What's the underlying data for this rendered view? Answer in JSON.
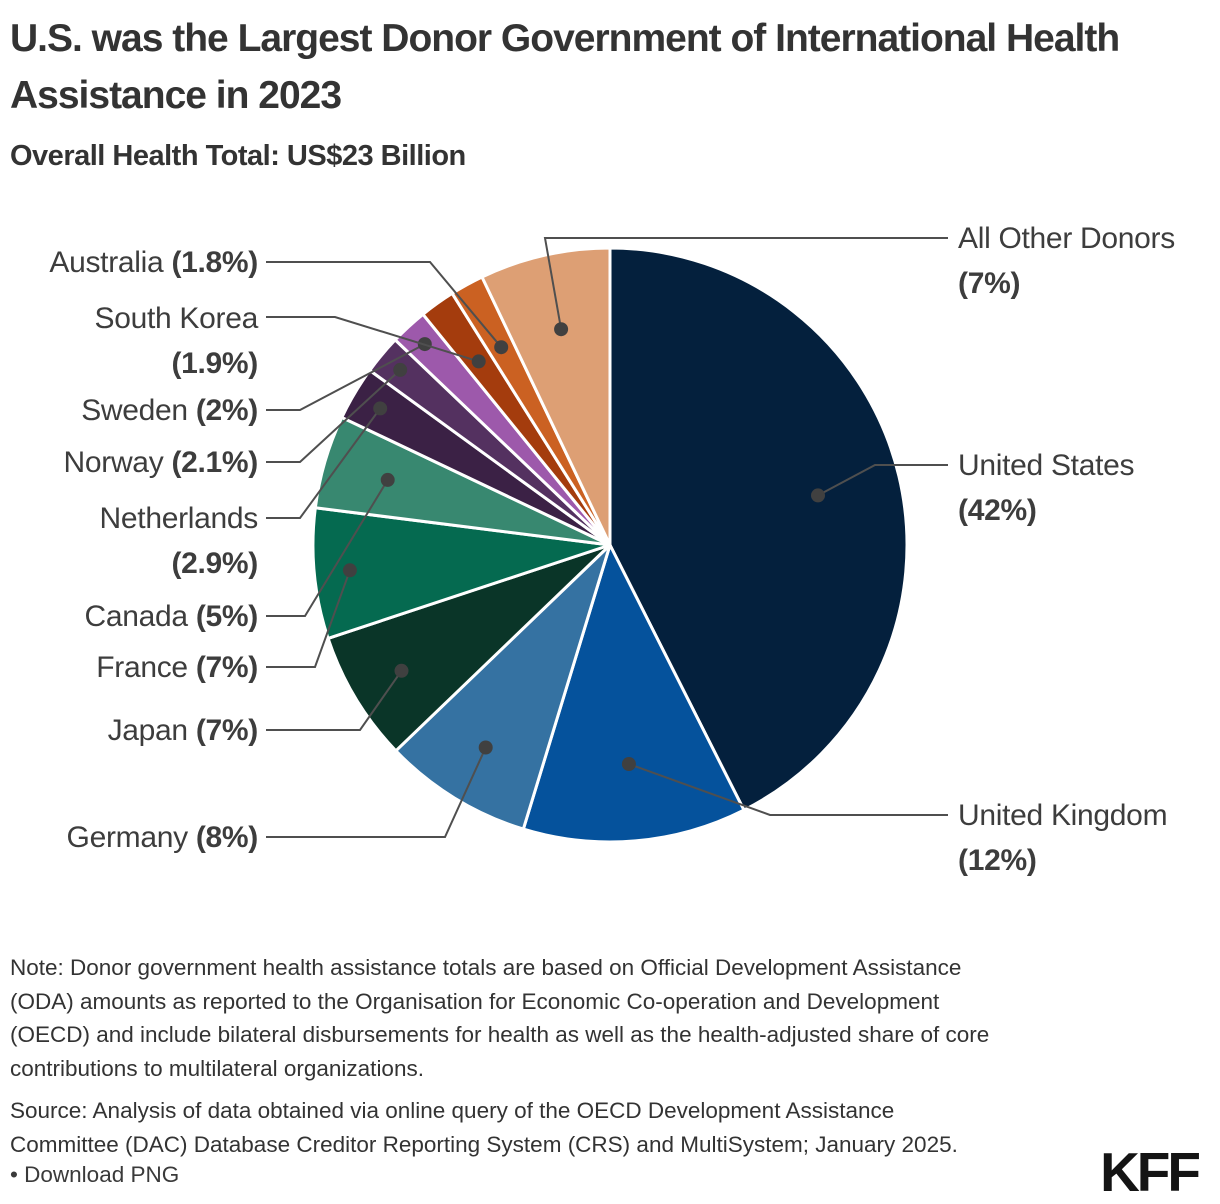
{
  "header": {
    "title": "U.S. was the Largest Donor Government of International Health Assistance in 2023",
    "subtitle": "Overall Health Total: US$23 Billion"
  },
  "chart_data": {
    "type": "pie",
    "title": "U.S. was the Largest Donor Government of International Health Assistance in 2023",
    "subtitle": "Overall Health Total: US$23 Billion",
    "total": "US$23 Billion",
    "unit": "percent of overall health total",
    "direction": "clockwise",
    "start_angle_deg": 0,
    "slices": [
      {
        "label": "United States",
        "pct_label": "(42%)",
        "value": 42,
        "color": "#04203d"
      },
      {
        "label": "United Kingdom",
        "pct_label": "(12%)",
        "value": 12,
        "color": "#05529c"
      },
      {
        "label": "Germany",
        "pct_label": "(8%)",
        "value": 8,
        "color": "#3572a2"
      },
      {
        "label": "Japan",
        "pct_label": "(7%)",
        "value": 7,
        "color": "#0a3528"
      },
      {
        "label": "France",
        "pct_label": "(7%)",
        "value": 7,
        "color": "#056a50"
      },
      {
        "label": "Canada",
        "pct_label": "(5%)",
        "value": 5,
        "color": "#388870"
      },
      {
        "label": "Netherlands",
        "pct_label": "(2.9%)",
        "value": 2.9,
        "color": "#3b2145"
      },
      {
        "label": "Norway",
        "pct_label": "(2.1%)",
        "value": 2.1,
        "color": "#543160"
      },
      {
        "label": "Sweden",
        "pct_label": "(2%)",
        "value": 2,
        "color": "#9d59ab"
      },
      {
        "label": "South Korea",
        "pct_label": "(1.9%)",
        "value": 1.9,
        "color": "#a43c0d"
      },
      {
        "label": "Australia",
        "pct_label": "(1.8%)",
        "value": 1.8,
        "color": "#cb6122"
      },
      {
        "label": "All Other Donors",
        "pct_label": "(7%)",
        "value": 7,
        "color": "#dd9f74"
      }
    ]
  },
  "footer": {
    "note": "Note: Donor government health assistance totals are based on Official Development Assistance (ODA) amounts as reported to the Organisation for Economic Co-operation and Development (OECD) and include bilateral disbursements for health as well as the health-adjusted share of core contributions to multilateral organizations.",
    "source": "Source: Analysis of data obtained via online query of the OECD Development Assistance Committee (DAC) Database Creditor Reporting System (CRS) and MultiSystem; January 2025.",
    "download_bullet": "•",
    "download_label": "Download PNG",
    "logo_text": "KFF"
  }
}
